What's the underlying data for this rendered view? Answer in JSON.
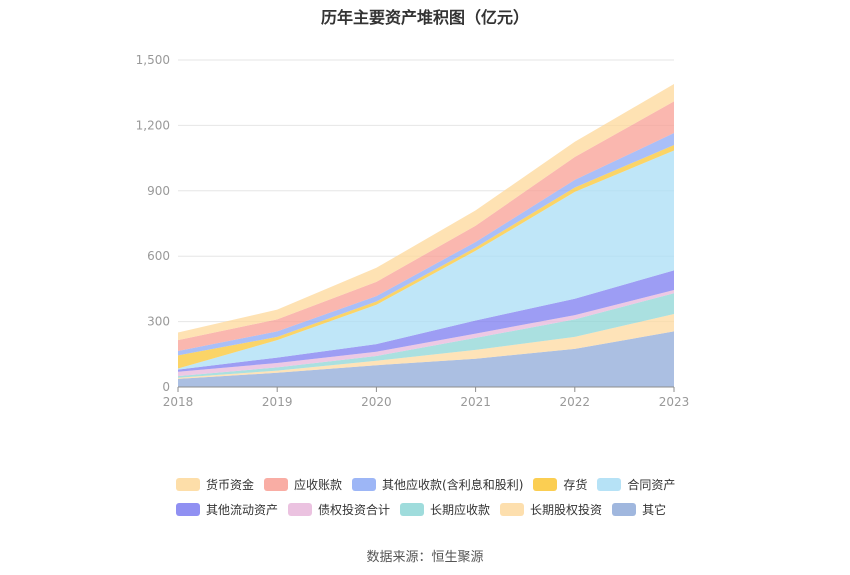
{
  "chart_data": {
    "type": "area",
    "stacked": true,
    "title": "历年主要资产堆积图（亿元）",
    "categories": [
      "2018",
      "2019",
      "2020",
      "2021",
      "2022",
      "2023"
    ],
    "yticks": [
      "0",
      "300",
      "600",
      "900",
      "1,200",
      "1,500"
    ],
    "ylim": [
      0,
      1500
    ],
    "grid": true,
    "legend_position": "bottom",
    "series": [
      {
        "name": "其它",
        "color": "#8faad8",
        "values": [
          37,
          65,
          100,
          130,
          175,
          255
        ]
      },
      {
        "name": "长期股权投资",
        "color": "#fdd9a0",
        "values": [
          5,
          10,
          20,
          40,
          55,
          80
        ]
      },
      {
        "name": "长期应收款",
        "color": "#8ed6d6",
        "values": [
          8,
          15,
          22,
          55,
          80,
          95
        ]
      },
      {
        "name": "债权投资合计",
        "color": "#e7b7db",
        "values": [
          20,
          20,
          20,
          20,
          20,
          15
        ]
      },
      {
        "name": "其他流动资产",
        "color": "#7c7cf0",
        "values": [
          10,
          25,
          35,
          60,
          75,
          90
        ]
      },
      {
        "name": "合同资产",
        "color": "#a9ddf5",
        "values": [
          5,
          80,
          180,
          320,
          490,
          550
        ]
      },
      {
        "name": "存货",
        "color": "#fac534",
        "values": [
          60,
          15,
          15,
          15,
          20,
          25
        ]
      },
      {
        "name": "其他应收款(含利息和股利)",
        "color": "#8ca9f5",
        "values": [
          20,
          25,
          25,
          25,
          35,
          55
        ]
      },
      {
        "name": "应收账款",
        "color": "#f89f94",
        "values": [
          50,
          55,
          65,
          75,
          105,
          145
        ]
      },
      {
        "name": "货币资金",
        "color": "#fdd89a",
        "values": [
          35,
          45,
          65,
          70,
          70,
          80
        ]
      }
    ],
    "legend_rows": [
      [
        "货币资金",
        "应收账款",
        "其他应收款(含利息和股利)",
        "存货",
        "合同资产"
      ],
      [
        "其他流动资产",
        "债权投资合计",
        "长期应收款",
        "长期股权投资",
        "其它"
      ]
    ],
    "source": "数据来源：恒生聚源"
  }
}
